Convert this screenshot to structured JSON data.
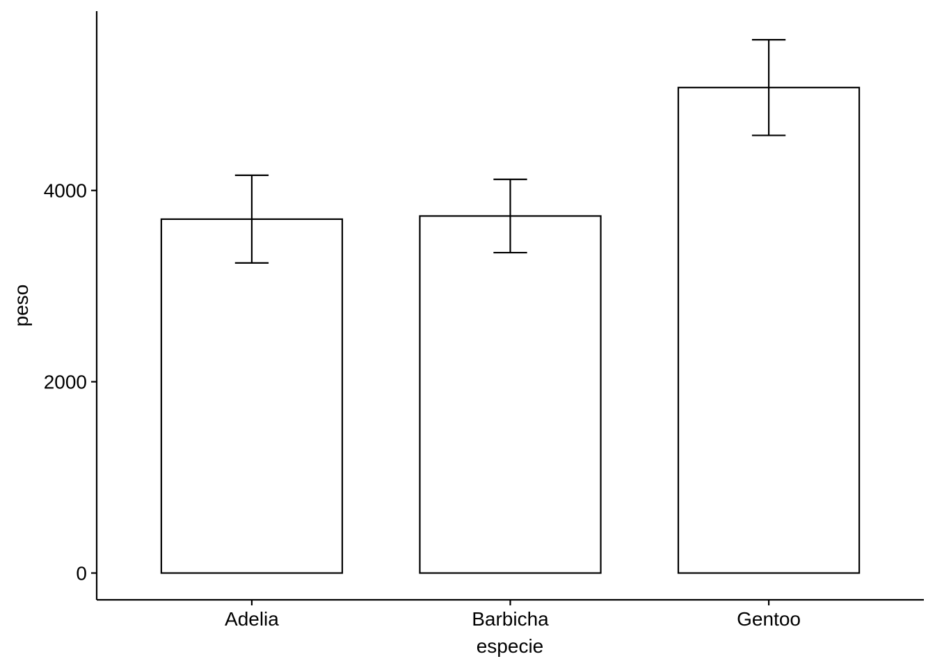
{
  "chart_data": {
    "type": "bar",
    "categories": [
      "Adelia",
      "Barbicha",
      "Gentoo"
    ],
    "values": [
      3700,
      3733,
      5076
    ],
    "error_low": [
      3242,
      3350,
      4576
    ],
    "error_high": [
      4159,
      4116,
      5576
    ],
    "xlabel": "especie",
    "ylabel": "peso",
    "ylim": [
      -280,
      5875
    ],
    "yticks": [
      0,
      2000,
      4000
    ],
    "ytick_labels": [
      "0",
      "2000",
      "4000"
    ],
    "grid": false,
    "legend": "none",
    "bar_fill": "#ffffff",
    "bar_stroke": "#000000"
  }
}
